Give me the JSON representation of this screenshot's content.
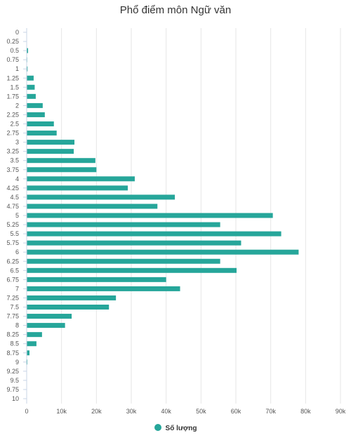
{
  "chart_data": {
    "type": "bar",
    "orientation": "horizontal",
    "title": "Phổ điểm môn Ngữ văn",
    "categories": [
      "0",
      "0.25",
      "0.5",
      "0.75",
      "1",
      "1.25",
      "1.5",
      "1.75",
      "2",
      "2.25",
      "2.5",
      "2.75",
      "3",
      "3.25",
      "3.5",
      "3.75",
      "4",
      "4.25",
      "4.5",
      "4.75",
      "5",
      "5.25",
      "5.5",
      "5.75",
      "6",
      "6.25",
      "6.5",
      "6.75",
      "7",
      "7.25",
      "7.5",
      "7.75",
      "8",
      "8.25",
      "8.5",
      "8.75",
      "9",
      "9.25",
      "9.5",
      "9.75",
      "10"
    ],
    "series": [
      {
        "name": "Số lượng",
        "color": "#26a69a",
        "values": [
          0,
          0,
          400,
          150,
          250,
          2000,
          2300,
          2600,
          4600,
          5200,
          7800,
          8600,
          13700,
          13500,
          19700,
          20000,
          31000,
          29000,
          42500,
          37500,
          70600,
          55500,
          73000,
          61500,
          78000,
          55500,
          60200,
          40000,
          44000,
          25600,
          23600,
          12900,
          11000,
          4400,
          2800,
          800,
          200,
          0,
          0,
          0,
          0
        ]
      }
    ],
    "xaxis": {
      "min": 0,
      "max": 90000,
      "ticks": [
        0,
        10000,
        20000,
        30000,
        40000,
        50000,
        60000,
        70000,
        80000,
        90000
      ],
      "tick_labels": [
        "0",
        "10k",
        "20k",
        "30k",
        "40k",
        "50k",
        "60k",
        "70k",
        "80k",
        "90k"
      ]
    },
    "grid": true,
    "legend_position": "bottom-center"
  }
}
